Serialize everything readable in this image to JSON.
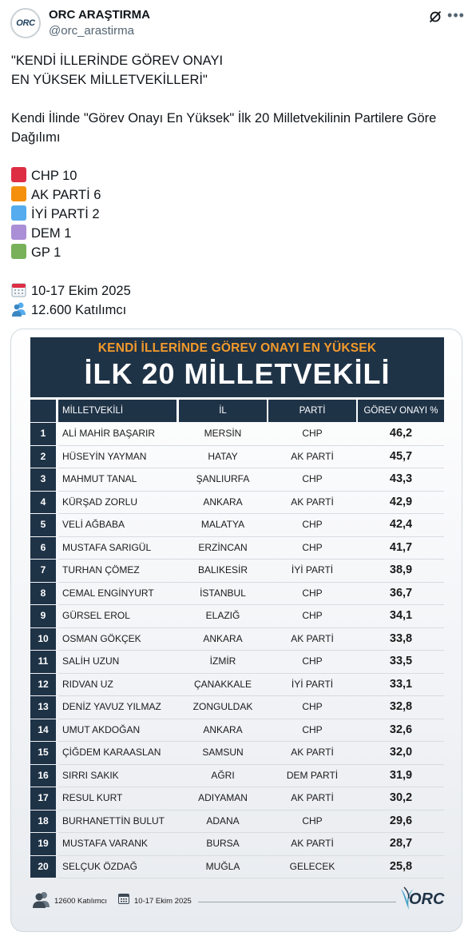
{
  "author": {
    "name": "ORC ARAŞTIRMA",
    "handle": "@orc_arastirma",
    "avatar_text": "ORC"
  },
  "tweet": {
    "title_line1": "\"KENDİ İLLERİNDE GÖREV ONAYI",
    "title_line2": "EN YÜKSEK MİLLETVEKİLLERİ\"",
    "description": "Kendi İlinde \"Görev Onayı En Yüksek\" İlk 20 Milletvekilinin Partilere Göre Dağılımı",
    "party_counts": [
      {
        "label": "CHP 10",
        "color": "#dd2e44"
      },
      {
        "label": "AK PARTİ 6",
        "color": "#f4900c"
      },
      {
        "label": "İYİ PARTİ 2",
        "color": "#55acee"
      },
      {
        "label": "DEM 1",
        "color": "#aa8ed6"
      },
      {
        "label": "GP 1",
        "color": "#78b159"
      }
    ],
    "date_line": "10-17 Ekim 2025",
    "participants_line": "12.600 Katılımcı"
  },
  "table": {
    "subtitle": "KENDİ İLLERİNDE GÖREV ONAYI EN YÜKSEK",
    "title": "İLK 20 MİLLETVEKİLİ",
    "columns": [
      "MİLLETVEKİLİ",
      "İL",
      "PARTİ",
      "GÖREV ONAYI %"
    ],
    "rows": [
      {
        "n": "1",
        "name": "ALİ MAHİR BAŞARIR",
        "il": "MERSİN",
        "parti": "CHP",
        "val": "46,2"
      },
      {
        "n": "2",
        "name": "HÜSEYİN YAYMAN",
        "il": "HATAY",
        "parti": "AK PARTİ",
        "val": "45,7"
      },
      {
        "n": "3",
        "name": "MAHMUT TANAL",
        "il": "ŞANLIURFA",
        "parti": "CHP",
        "val": "43,3"
      },
      {
        "n": "4",
        "name": "KÜRŞAD ZORLU",
        "il": "ANKARA",
        "parti": "AK PARTİ",
        "val": "42,9"
      },
      {
        "n": "5",
        "name": "VELİ AĞBABA",
        "il": "MALATYA",
        "parti": "CHP",
        "val": "42,4"
      },
      {
        "n": "6",
        "name": "MUSTAFA SARIGÜL",
        "il": "ERZİNCAN",
        "parti": "CHP",
        "val": "41,7"
      },
      {
        "n": "7",
        "name": "TURHAN ÇÖMEZ",
        "il": "BALIKESİR",
        "parti": "İYİ PARTİ",
        "val": "38,9"
      },
      {
        "n": "8",
        "name": "CEMAL ENGİNYURT",
        "il": "İSTANBUL",
        "parti": "CHP",
        "val": "36,7"
      },
      {
        "n": "9",
        "name": "GÜRSEL EROL",
        "il": "ELAZIĞ",
        "parti": "CHP",
        "val": "34,1"
      },
      {
        "n": "10",
        "name": "OSMAN GÖKÇEK",
        "il": "ANKARA",
        "parti": "AK PARTİ",
        "val": "33,8"
      },
      {
        "n": "11",
        "name": "SALİH UZUN",
        "il": "İZMİR",
        "parti": "CHP",
        "val": "33,5"
      },
      {
        "n": "12",
        "name": "RIDVAN UZ",
        "il": "ÇANAKKALE",
        "parti": "İYİ PARTİ",
        "val": "33,1"
      },
      {
        "n": "13",
        "name": "DENİZ YAVUZ YILMAZ",
        "il": "ZONGULDAK",
        "parti": "CHP",
        "val": "32,8"
      },
      {
        "n": "14",
        "name": "UMUT AKDOĞAN",
        "il": "ANKARA",
        "parti": "CHP",
        "val": "32,6"
      },
      {
        "n": "15",
        "name": "ÇİĞDEM KARAASLAN",
        "il": "SAMSUN",
        "parti": "AK PARTİ",
        "val": "32,0"
      },
      {
        "n": "16",
        "name": "SIRRI SAKIK",
        "il": "AĞRI",
        "parti": "DEM PARTİ",
        "val": "31,9"
      },
      {
        "n": "17",
        "name": "RESUL KURT",
        "il": "ADIYAMAN",
        "parti": "AK PARTİ",
        "val": "30,2"
      },
      {
        "n": "18",
        "name": "BURHANETTİN BULUT",
        "il": "ADANA",
        "parti": "CHP",
        "val": "29,6"
      },
      {
        "n": "19",
        "name": "MUSTAFA VARANK",
        "il": "BURSA",
        "parti": "AK PARTİ",
        "val": "28,7"
      },
      {
        "n": "20",
        "name": "SELÇUK ÖZDAĞ",
        "il": "MUĞLA",
        "parti": "GELECEK",
        "val": "25,8"
      }
    ],
    "footer_participants": "12600 Katılımcı",
    "footer_date": "10-17 Ekim 2025",
    "footer_logo": "ORC"
  },
  "colors": {
    "navy": "#1f3347",
    "orange": "#f39a2b"
  }
}
